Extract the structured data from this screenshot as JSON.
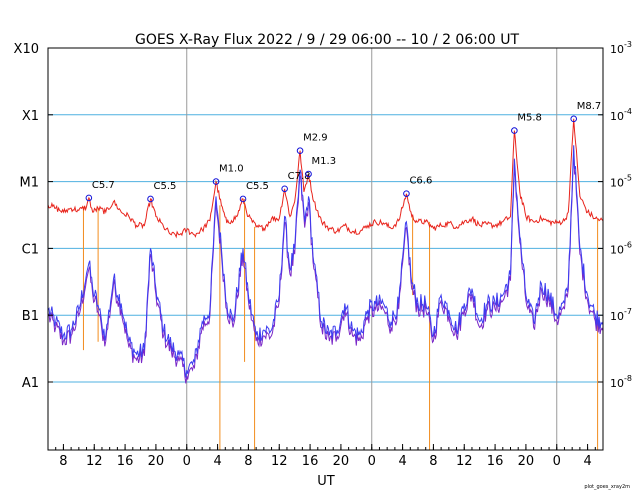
{
  "title": "GOES X-Ray Flux   2022 /  9 / 29   06:00 -- 10 /  2   06:00   UT",
  "credit": "plot_goes_xray2m",
  "chart_data": {
    "type": "line",
    "title": "GOES X-Ray Flux   2022 /  9 / 29   06:00 -- 10 /  2   06:00   UT",
    "xlabel": "UT",
    "ylabel": "",
    "x_unit": "hours since 2022-09-29 06:00 UT",
    "xlim": [
      0,
      72
    ],
    "ylim": [
      1e-09,
      0.001
    ],
    "y_scale": "log",
    "grid": true,
    "day_boundaries_hours": [
      18,
      42,
      66
    ],
    "x_ticks": [
      {
        "h": 2,
        "label": "8"
      },
      {
        "h": 6,
        "label": "12"
      },
      {
        "h": 10,
        "label": "16"
      },
      {
        "h": 14,
        "label": "20"
      },
      {
        "h": 18,
        "label": "0"
      },
      {
        "h": 22,
        "label": "4"
      },
      {
        "h": 26,
        "label": "8"
      },
      {
        "h": 30,
        "label": "12"
      },
      {
        "h": 34,
        "label": "16"
      },
      {
        "h": 38,
        "label": "20"
      },
      {
        "h": 42,
        "label": "0"
      },
      {
        "h": 46,
        "label": "4"
      },
      {
        "h": 50,
        "label": "8"
      },
      {
        "h": 54,
        "label": "12"
      },
      {
        "h": 58,
        "label": "16"
      },
      {
        "h": 62,
        "label": "20"
      },
      {
        "h": 66,
        "label": "0"
      },
      {
        "h": 70,
        "label": "4"
      }
    ],
    "left_ticks": [
      {
        "label": "X10",
        "flux": 0.001
      },
      {
        "label": "X1",
        "flux": 0.0001
      },
      {
        "label": "M1",
        "flux": 1e-05
      },
      {
        "label": "C1",
        "flux": 1e-06
      },
      {
        "label": "B1",
        "flux": 1e-07
      },
      {
        "label": "A1",
        "flux": 1e-08
      }
    ],
    "right_ticks": [
      {
        "base": "10",
        "exp": "-3",
        "flux": 0.001
      },
      {
        "base": "10",
        "exp": "-4",
        "flux": 0.0001
      },
      {
        "base": "10",
        "exp": "-5",
        "flux": 1e-05
      },
      {
        "base": "10",
        "exp": "-6",
        "flux": 1e-06
      },
      {
        "base": "10",
        "exp": "-7",
        "flux": 1e-07
      },
      {
        "base": "10",
        "exp": "-8",
        "flux": 1e-08
      }
    ],
    "flares": [
      {
        "label": "C5.7",
        "x": 5.3,
        "flux": 5.7e-06
      },
      {
        "label": "C5.5",
        "x": 13.3,
        "flux": 5.5e-06
      },
      {
        "label": "M1.0",
        "x": 21.8,
        "flux": 1e-05
      },
      {
        "label": "C5.5",
        "x": 25.3,
        "flux": 5.5e-06
      },
      {
        "label": "C7.8",
        "x": 30.7,
        "flux": 7.8e-06
      },
      {
        "label": "M2.9",
        "x": 32.7,
        "flux": 2.9e-05
      },
      {
        "label": "M1.3",
        "x": 33.8,
        "flux": 1.3e-05
      },
      {
        "label": "C6.6",
        "x": 46.5,
        "flux": 6.6e-06
      },
      {
        "label": "M5.8",
        "x": 60.5,
        "flux": 5.8e-05
      },
      {
        "label": "M8.7",
        "x": 68.2,
        "flux": 8.7e-05
      }
    ],
    "series": [
      {
        "name": "",
        "color": "#e8241c",
        "spike_color": "#f28c1e",
        "points": [
          [
            0,
            4.5e-06
          ],
          [
            1,
            4e-06
          ],
          [
            2,
            3.5e-06
          ],
          [
            3,
            4e-06
          ],
          [
            4,
            3.7e-06
          ],
          [
            5,
            4.2e-06
          ],
          [
            5.3,
            5.7e-06
          ],
          [
            5.8,
            3.5e-06
          ],
          [
            6.5,
            4e-06
          ],
          [
            7.5,
            3.5e-06
          ],
          [
            8.5,
            5e-06
          ],
          [
            9.5,
            3.5e-06
          ],
          [
            10.5,
            3e-06
          ],
          [
            11.5,
            2.2e-06
          ],
          [
            12.5,
            2.2e-06
          ],
          [
            13.3,
            5.5e-06
          ],
          [
            14,
            3e-06
          ],
          [
            15,
            2.1e-06
          ],
          [
            16,
            1.6e-06
          ],
          [
            17,
            1.6e-06
          ],
          [
            18,
            1.9e-06
          ],
          [
            19,
            1.6e-06
          ],
          [
            20,
            1.9e-06
          ],
          [
            21,
            2.6e-06
          ],
          [
            21.8,
            1e-05
          ],
          [
            22.5,
            4.4e-06
          ],
          [
            23.2,
            2.4e-06
          ],
          [
            23.8,
            2.6e-06
          ],
          [
            24.5,
            3e-06
          ],
          [
            25.3,
            5.5e-06
          ],
          [
            26,
            3e-06
          ],
          [
            27,
            2.1e-06
          ],
          [
            28,
            2e-06
          ],
          [
            29,
            2.8e-06
          ],
          [
            30,
            2.8e-06
          ],
          [
            30.7,
            7.8e-06
          ],
          [
            31.4,
            3e-06
          ],
          [
            32,
            5e-06
          ],
          [
            32.7,
            2.9e-05
          ],
          [
            33.2,
            7e-06
          ],
          [
            33.8,
            1.3e-05
          ],
          [
            34.5,
            5e-06
          ],
          [
            35.5,
            2.5e-06
          ],
          [
            36.5,
            2e-06
          ],
          [
            37.5,
            1.8e-06
          ],
          [
            38.5,
            2.2e-06
          ],
          [
            39.5,
            1.8e-06
          ],
          [
            40.5,
            1.8e-06
          ],
          [
            41.5,
            2.2e-06
          ],
          [
            42.5,
            2.5e-06
          ],
          [
            43.5,
            2.4e-06
          ],
          [
            44.5,
            2e-06
          ],
          [
            45.5,
            2.6e-06
          ],
          [
            46.5,
            6.6e-06
          ],
          [
            47.2,
            3e-06
          ],
          [
            48,
            2.5e-06
          ],
          [
            49,
            2.5e-06
          ],
          [
            50,
            2e-06
          ],
          [
            51,
            2.2e-06
          ],
          [
            52,
            2.4e-06
          ],
          [
            53,
            2.1e-06
          ],
          [
            54,
            2.5e-06
          ],
          [
            55,
            2.8e-06
          ],
          [
            56,
            2.2e-06
          ],
          [
            57,
            2.3e-06
          ],
          [
            58,
            2.2e-06
          ],
          [
            59,
            2.5e-06
          ],
          [
            60,
            3e-06
          ],
          [
            60.5,
            5.8e-05
          ],
          [
            61.2,
            7e-06
          ],
          [
            62,
            3e-06
          ],
          [
            63,
            2.5e-06
          ],
          [
            64,
            2.8e-06
          ],
          [
            65,
            2.5e-06
          ],
          [
            66,
            2.4e-06
          ],
          [
            67,
            2.6e-06
          ],
          [
            67.5,
            3.5e-06
          ],
          [
            68.2,
            8.7e-05
          ],
          [
            69,
            6e-06
          ],
          [
            70,
            3.5e-06
          ],
          [
            71,
            2.8e-06
          ],
          [
            72,
            2.6e-06
          ]
        ],
        "dropouts": [
          [
            4.6,
            3e-08
          ],
          [
            6.5,
            4e-08
          ],
          [
            22.3,
            5e-10
          ],
          [
            25.5,
            2e-08
          ],
          [
            26.8,
            5e-10
          ],
          [
            47.3,
            2e-07
          ],
          [
            49.5,
            5e-10
          ],
          [
            71.3,
            5e-10
          ]
        ]
      },
      {
        "name": "",
        "color": "#3c3cf0",
        "lower_color": "#7a28c8",
        "points": [
          [
            0,
            1.2e-07
          ],
          [
            1,
            8e-08
          ],
          [
            2,
            5e-08
          ],
          [
            3,
            6e-08
          ],
          [
            4,
            1.2e-07
          ],
          [
            5,
            4.2e-07
          ],
          [
            5.3,
            6e-07
          ],
          [
            5.8,
            2.5e-07
          ],
          [
            6.5,
            1.4e-07
          ],
          [
            7,
            7e-08
          ],
          [
            7.5,
            5e-08
          ],
          [
            8.5,
            3.5e-07
          ],
          [
            9.5,
            1.5e-07
          ],
          [
            10.5,
            4e-08
          ],
          [
            11.5,
            2.6e-08
          ],
          [
            12.5,
            3e-08
          ],
          [
            13.3,
            1e-06
          ],
          [
            14,
            2.5e-07
          ],
          [
            15,
            6e-08
          ],
          [
            16,
            3.5e-08
          ],
          [
            17,
            2.5e-08
          ],
          [
            18,
            1.5e-08
          ],
          [
            19,
            2e-08
          ],
          [
            20,
            8e-08
          ],
          [
            21,
            1.2e-07
          ],
          [
            21.8,
            6e-06
          ],
          [
            22.5,
            1e-06
          ],
          [
            23.2,
            1.5e-07
          ],
          [
            24,
            8e-08
          ],
          [
            25.3,
            1e-06
          ],
          [
            26,
            2e-07
          ],
          [
            27,
            5e-08
          ],
          [
            28,
            6e-08
          ],
          [
            29,
            6e-08
          ],
          [
            30,
            2e-07
          ],
          [
            30.7,
            3e-06
          ],
          [
            31.4,
            5e-07
          ],
          [
            32,
            1e-06
          ],
          [
            32.7,
            1.5e-05
          ],
          [
            33.3,
            2.5e-06
          ],
          [
            33.8,
            6e-06
          ],
          [
            34.5,
            6e-07
          ],
          [
            35.5,
            8e-08
          ],
          [
            36.5,
            5e-08
          ],
          [
            37.5,
            6e-08
          ],
          [
            38.5,
            1.5e-07
          ],
          [
            39.5,
            6e-08
          ],
          [
            40.5,
            5e-08
          ],
          [
            41.5,
            1.2e-07
          ],
          [
            42.5,
            1.5e-07
          ],
          [
            43.5,
            1.5e-07
          ],
          [
            44.5,
            8e-08
          ],
          [
            45.5,
            1.5e-07
          ],
          [
            46.5,
            2.5e-06
          ],
          [
            47.2,
            3e-07
          ],
          [
            48,
            1.5e-07
          ],
          [
            49,
            1.5e-07
          ],
          [
            50,
            5e-08
          ],
          [
            51,
            2e-07
          ],
          [
            52,
            1.2e-07
          ],
          [
            53,
            6e-08
          ],
          [
            54,
            1.5e-07
          ],
          [
            55,
            2.5e-07
          ],
          [
            56,
            8e-08
          ],
          [
            57,
            1.5e-07
          ],
          [
            58,
            1.5e-07
          ],
          [
            59,
            2e-07
          ],
          [
            60,
            4e-07
          ],
          [
            60.5,
            2.2e-05
          ],
          [
            61.2,
            1.5e-06
          ],
          [
            62,
            2e-07
          ],
          [
            63,
            8e-08
          ],
          [
            64,
            3e-07
          ],
          [
            65,
            2e-07
          ],
          [
            66,
            1e-07
          ],
          [
            67,
            1.5e-07
          ],
          [
            67.5,
            3e-07
          ],
          [
            68.2,
            3.5e-05
          ],
          [
            69,
            1e-06
          ],
          [
            70,
            2e-07
          ],
          [
            71,
            1e-07
          ],
          [
            72,
            8e-08
          ]
        ]
      }
    ]
  }
}
